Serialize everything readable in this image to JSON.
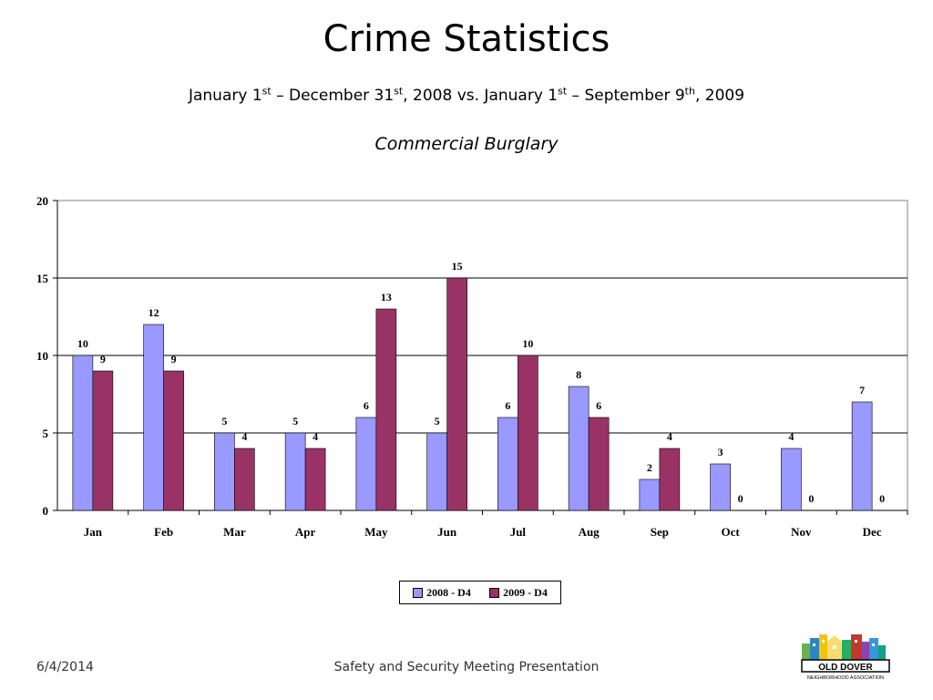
{
  "slide": {
    "title": "Crime Statistics",
    "subtitle": {
      "p1": "January 1",
      "s1": "st",
      "p2": " – December 31",
      "s2": "st",
      "p3": ", 2008 vs.  January 1",
      "s3": "st",
      "p4": " – September 9",
      "s4": "th",
      "p5": ", 2009"
    },
    "category": "Commercial Burglary",
    "footer": {
      "date": "6/4/2014",
      "text": "Safety and Security Meeting Presentation"
    },
    "logo": {
      "name": "OLD DOVER",
      "tagline": "NEIGHBORHOOD ASSOCIATION"
    }
  },
  "chart_data": {
    "type": "bar",
    "categories": [
      "Jan",
      "Feb",
      "Mar",
      "Apr",
      "May",
      "Jun",
      "Jul",
      "Aug",
      "Sep",
      "Oct",
      "Nov",
      "Dec"
    ],
    "series": [
      {
        "name": "2008 - D4",
        "color": "#9999ff",
        "values": [
          10,
          12,
          5,
          5,
          6,
          5,
          6,
          8,
          2,
          3,
          4,
          7
        ]
      },
      {
        "name": "2009 - D4",
        "color": "#993366",
        "values": [
          9,
          9,
          4,
          4,
          13,
          15,
          10,
          6,
          4,
          0,
          0,
          0
        ]
      }
    ],
    "ylim": [
      0,
      20
    ],
    "yticks": [
      0,
      5,
      10,
      15,
      20
    ],
    "grid": true,
    "legend_position": "bottom-center"
  }
}
